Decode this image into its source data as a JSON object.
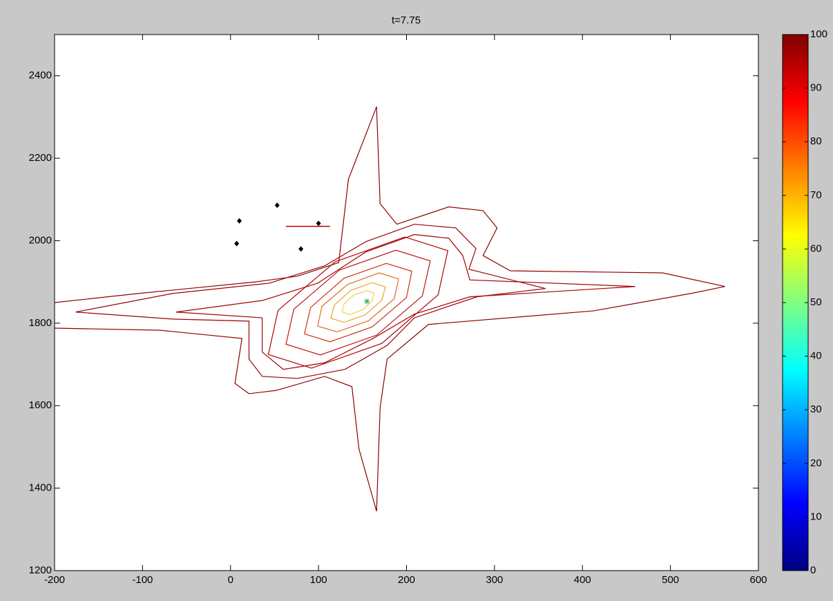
{
  "chart_data": {
    "type": "contour",
    "title": "t=7.75",
    "xlim": [
      -200,
      600
    ],
    "xticks": [
      -200,
      -100,
      0,
      100,
      200,
      300,
      400,
      500,
      600
    ],
    "ylim": [
      1200,
      2500
    ],
    "yticks": [
      1200,
      1400,
      1600,
      1800,
      2000,
      2200,
      2400
    ],
    "contours": [
      {
        "color": "#8b0000",
        "closed": false,
        "x": [
          -200,
          -105,
          28,
          76,
          123,
          134,
          166,
          170,
          189,
          248,
          287,
          303,
          287,
          318,
          491,
          562,
          523,
          413,
          225,
          178,
          170,
          166,
          146,
          138,
          107,
          52,
          21,
          5,
          13,
          -81,
          -200
        ],
        "y": [
          1850,
          1872,
          1900,
          1914,
          1947,
          2149,
          2325,
          2090,
          2040,
          2082,
          2073,
          2031,
          1964,
          1927,
          1922,
          1889,
          1872,
          1830,
          1797,
          1713,
          1595,
          1344,
          1495,
          1646,
          1671,
          1637,
          1629,
          1654,
          1763,
          1783,
          1788
        ]
      },
      {
        "color": "#990000",
        "closed": true,
        "x": [
          -176,
          -66,
          44,
          107,
          154,
          209,
          256,
          279,
          271,
          358,
          280,
          209,
          178,
          130,
          76,
          36,
          21,
          21,
          -66
        ],
        "y": [
          1827,
          1872,
          1897,
          1939,
          1998,
          2040,
          2031,
          1981,
          1931,
          1884,
          1864,
          1813,
          1746,
          1688,
          1666,
          1671,
          1713,
          1805,
          1810
        ]
      },
      {
        "color": "#a50000",
        "closed": true,
        "x": [
          -62,
          36,
          99,
          154,
          209,
          248,
          264,
          272,
          460,
          272,
          209,
          162,
          107,
          60,
          36,
          36
        ],
        "y": [
          1827,
          1855,
          1897,
          1973,
          2015,
          2006,
          1964,
          1905,
          1889,
          1864,
          1822,
          1763,
          1704,
          1688,
          1730,
          1813
        ]
      },
      {
        "color": "#b00000",
        "closed": true,
        "x": [
          247,
          198,
          119,
          54,
          43,
          92,
          172,
          236
        ],
        "y": [
          1976,
          2009,
          1949,
          1831,
          1724,
          1691,
          1751,
          1869
        ]
      },
      {
        "color": "#c01010",
        "closed": true,
        "x": [
          227,
          188,
          124,
          72,
          63,
          102,
          166,
          218
        ],
        "y": [
          1951,
          1977,
          1929,
          1834,
          1749,
          1723,
          1771,
          1866
        ]
      },
      {
        "color": "#d03010",
        "closed": true,
        "x": [
          206,
          177,
          129,
          91,
          84,
          113,
          161,
          200
        ],
        "y": [
          1926,
          1945,
          1909,
          1838,
          1774,
          1755,
          1791,
          1862
        ]
      },
      {
        "color": "#e06a20",
        "closed": true,
        "x": [
          191,
          169,
          133,
          104,
          99,
          121,
          157,
          186
        ],
        "y": [
          1907,
          1922,
          1894,
          1841,
          1793,
          1779,
          1806,
          1859
        ]
      },
      {
        "color": "#eba030",
        "closed": true,
        "x": [
          176,
          161,
          137,
          118,
          114,
          129,
          153,
          172
        ],
        "y": [
          1888,
          1898,
          1880,
          1844,
          1812,
          1802,
          1820,
          1856
        ]
      },
      {
        "color": "#f3d050",
        "closed": true,
        "x": [
          163,
          155,
          140,
          129,
          127,
          135,
          150,
          161
        ],
        "y": [
          1873,
          1879,
          1868,
          1847,
          1827,
          1821,
          1832,
          1854
        ]
      }
    ],
    "markers": {
      "color": "#000000",
      "x": [
        7,
        10,
        53,
        100,
        80
      ],
      "y": [
        1993,
        2048,
        2086,
        2042,
        1980
      ]
    },
    "segment": {
      "color": "#c00000",
      "x": [
        63,
        113
      ],
      "y": [
        2035,
        2035
      ]
    },
    "star": {
      "color": "#3cb371",
      "x": [
        155
      ],
      "y": [
        1853
      ]
    },
    "colorbar": {
      "colormap": "jet",
      "clim": [
        0,
        100
      ],
      "ticks": [
        0,
        10,
        20,
        30,
        40,
        50,
        60,
        70,
        80,
        90,
        100
      ]
    }
  }
}
